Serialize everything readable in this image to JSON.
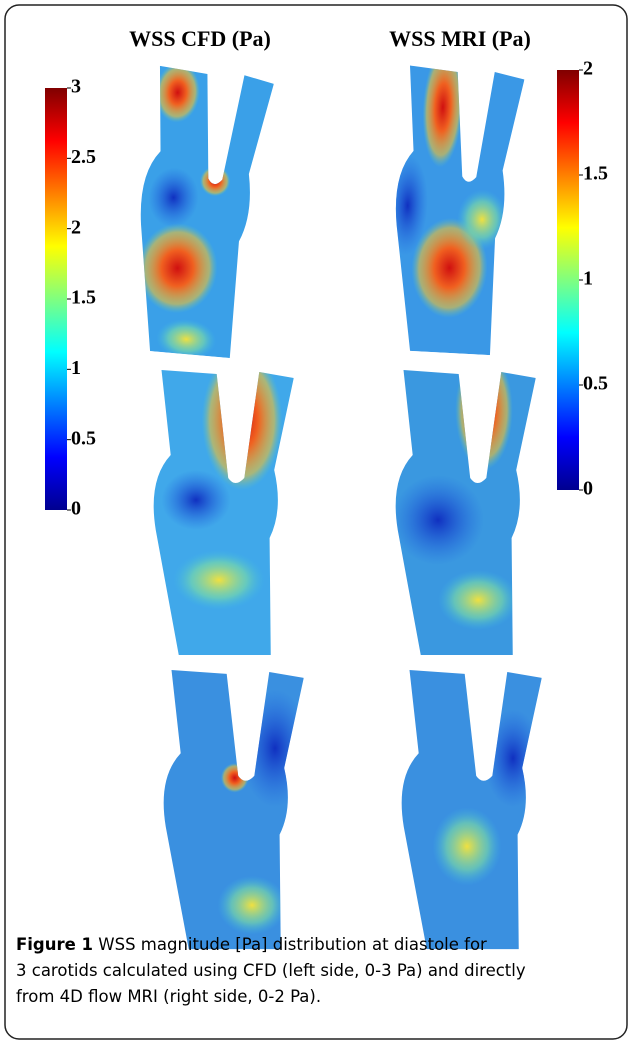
{
  "header": {
    "left_title": "WSS CFD (Pa)",
    "right_title": "WSS MRI (Pa)"
  },
  "colorbars": [
    {
      "lim": [
        0,
        3
      ],
      "ticks": [
        3,
        2.5,
        2,
        1.5,
        1,
        0.5,
        0
      ]
    },
    {
      "lim": [
        0,
        2
      ],
      "ticks": [
        2,
        1.5,
        1,
        0.5,
        0
      ]
    }
  ],
  "caption": {
    "label": "Figure 1",
    "lines": [
      "WSS magnitude [Pa] distribution at diastole for",
      "3 carotids calculated using CFD (left side, 0-3 Pa) and directly",
      "from 4D flow MRI (right side, 0-2 Pa)."
    ]
  }
}
